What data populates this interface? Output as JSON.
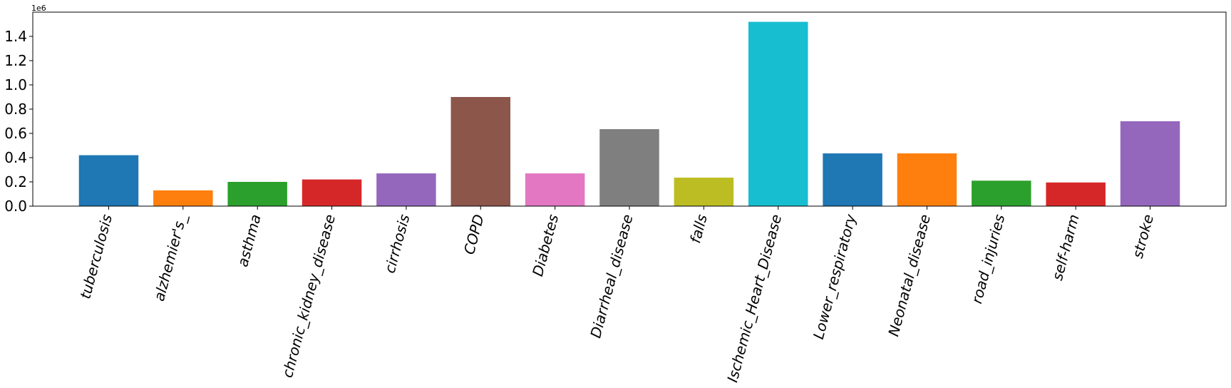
{
  "chart_data": {
    "type": "bar",
    "title": "",
    "xlabel": "",
    "ylabel": "",
    "y_offset_label": "1e6",
    "ylim": [
      0,
      1.6
    ],
    "y_ticks": [
      0.0,
      0.2,
      0.4,
      0.6,
      0.8,
      1.0,
      1.2,
      1.4
    ],
    "y_tick_labels": [
      "0.0",
      "0.2",
      "0.4",
      "0.6",
      "0.8",
      "1.0",
      "1.2",
      "1.4"
    ],
    "grid": false,
    "categories": [
      "tuberculosis",
      "alzhemier's_",
      "asthma",
      "chronic_kidney_disease",
      "cirrhosis",
      "COPD",
      "Diabetes",
      "Diarrheal_disease",
      "falls",
      "Ischemic_Heart_Disease",
      "Lower_respiratory",
      "Neonatal_disease",
      "road_injuries",
      "self-harm",
      "stroke"
    ],
    "values": [
      0.42,
      0.13,
      0.2,
      0.22,
      0.27,
      0.9,
      0.27,
      0.635,
      0.235,
      1.52,
      0.435,
      0.435,
      0.21,
      0.195,
      0.7
    ],
    "colors": [
      "#1f77b4",
      "#ff7f0e",
      "#2ca02c",
      "#d62728",
      "#9467bd",
      "#8c564b",
      "#e377c2",
      "#7f7f7f",
      "#bcbd22",
      "#17becf",
      "#1f77b4",
      "#ff7f0e",
      "#2ca02c",
      "#d62728",
      "#9467bd"
    ]
  }
}
